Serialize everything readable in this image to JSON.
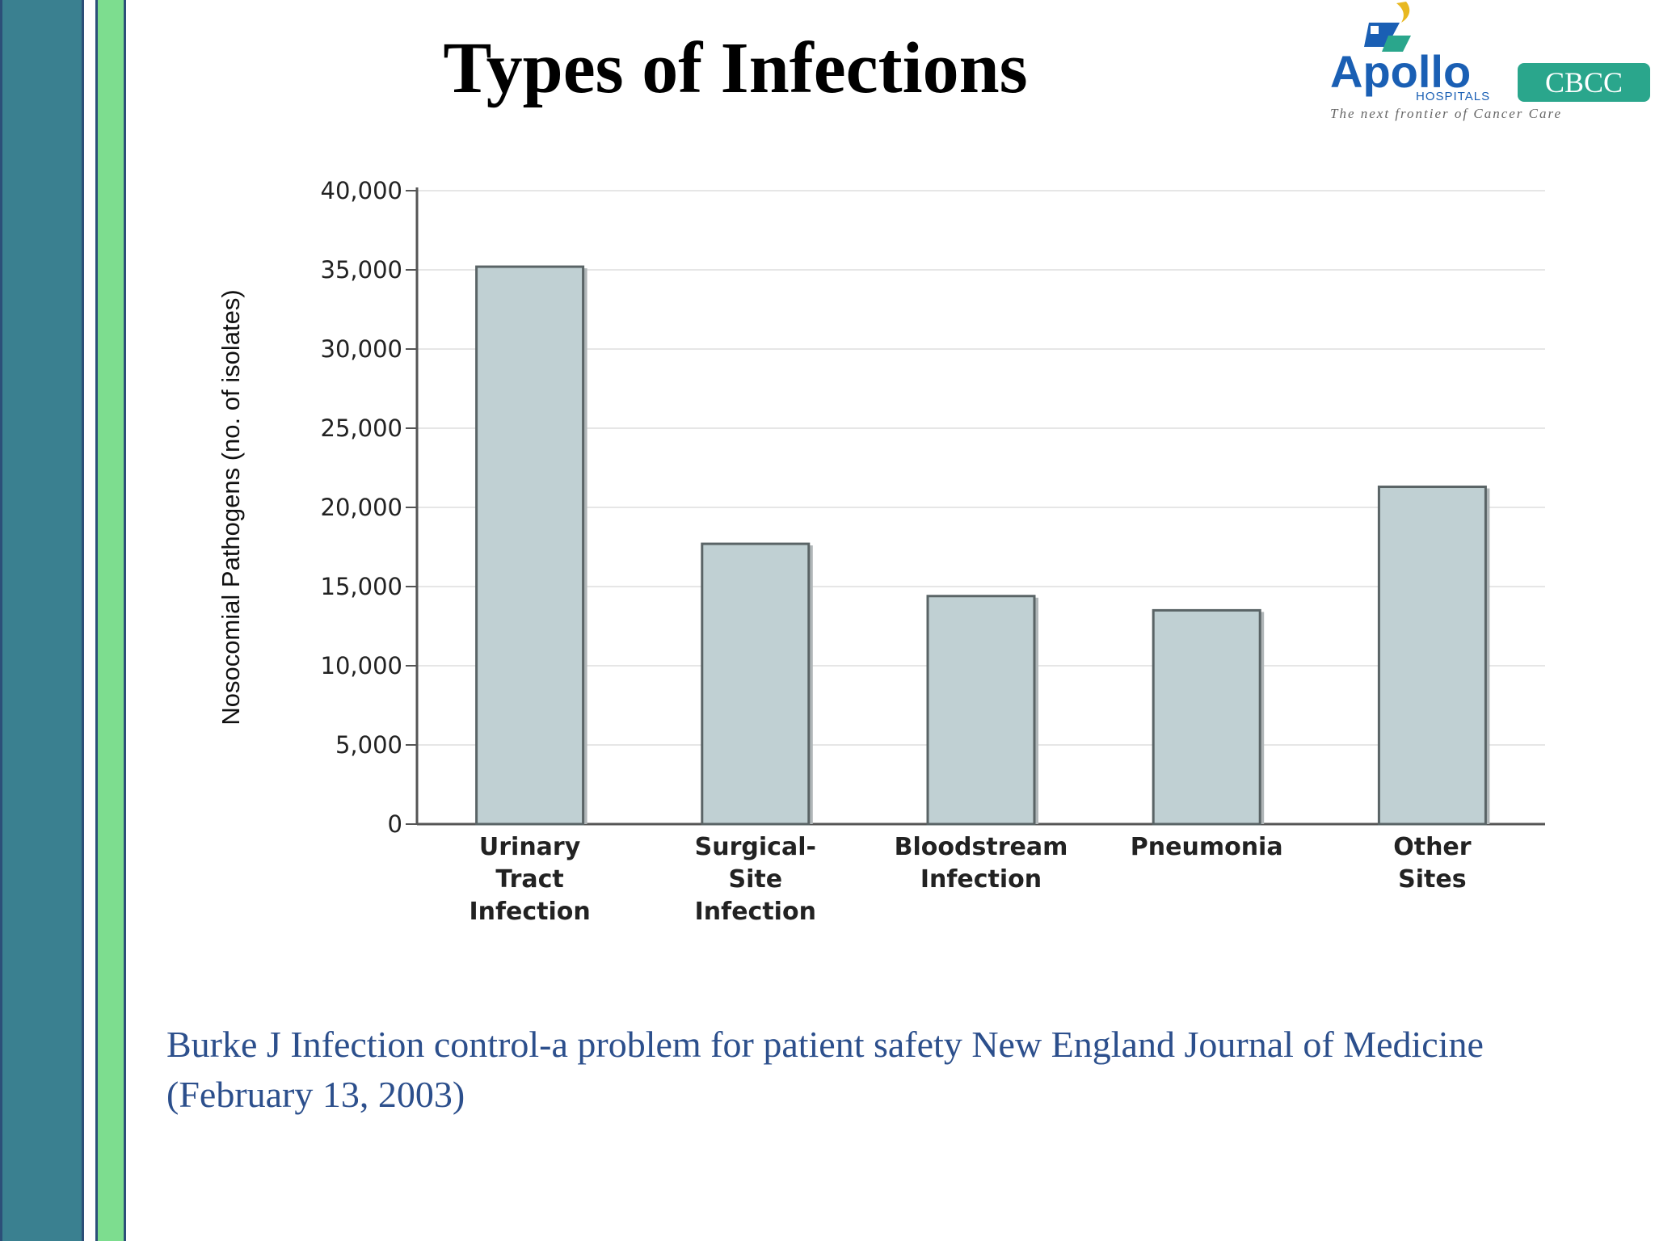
{
  "slide": {
    "title": "Types of Infections",
    "citation": "Burke J Infection control-a problem for patient safety New England Journal of Medicine (February 13, 2003)"
  },
  "logo": {
    "brand": "Apollo",
    "sub": "HOSPITALS",
    "badge": "CBCC",
    "tagline": "The next frontier of Cancer Care"
  },
  "colors": {
    "stripe_dark": "#3a8090",
    "stripe_light": "#7ddd8f",
    "bar_fill": "#c0d0d3",
    "bar_stroke": "#5a6466",
    "citation": "#2c4f8c",
    "logo_blue": "#1a5fb4",
    "logo_teal": "#2aa68c"
  },
  "chart_data": {
    "type": "bar",
    "title": "",
    "xlabel": "",
    "ylabel": "Nosocomial Pathogens (no. of isolates)",
    "categories": [
      [
        "Urinary",
        "Tract",
        "Infection"
      ],
      [
        "Surgical-",
        "Site",
        "Infection"
      ],
      [
        "Bloodstream",
        "Infection"
      ],
      [
        "Pneumonia"
      ],
      [
        "Other",
        "Sites"
      ]
    ],
    "values": [
      35200,
      17700,
      14400,
      13500,
      21300
    ],
    "ylim": [
      0,
      40000
    ],
    "yticks": [
      0,
      5000,
      10000,
      15000,
      20000,
      25000,
      30000,
      35000,
      40000
    ],
    "ytick_labels": [
      "0",
      "5,000",
      "10,000",
      "15,000",
      "20,000",
      "25,000",
      "30,000",
      "35,000",
      "40,000"
    ],
    "grid": true,
    "legend": "none"
  }
}
